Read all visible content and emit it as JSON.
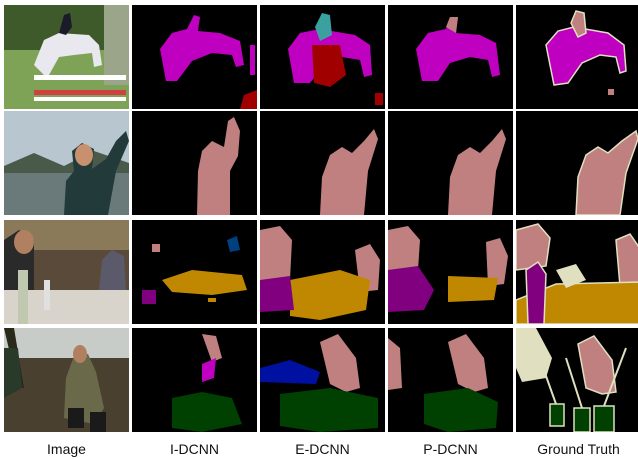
{
  "columns": [
    {
      "label": "Image"
    },
    {
      "label": "I-DCNN"
    },
    {
      "label": "E-DCNN"
    },
    {
      "label": "P-DCNN"
    },
    {
      "label": "Ground Truth"
    }
  ],
  "rows": [
    {
      "scene": "horse-rider-show-jumping"
    },
    {
      "scene": "man-by-lake"
    },
    {
      "scene": "dinner-table-people-bottles"
    },
    {
      "scene": "woman-crouching-with-plants"
    }
  ],
  "class_colors": {
    "background": "#000000",
    "person": "#c08080",
    "horse": "#c000c0",
    "rider_mislabel": "#3aa0a0",
    "red_region": "#a00000",
    "dining_table": "#c08800",
    "bottle": "#800080",
    "chair": "#004080",
    "potted_plant": "#004000",
    "blue_region": "#0010a0",
    "boundary": "#e0e0c0",
    "ignore_light": "#e0e0c0"
  }
}
